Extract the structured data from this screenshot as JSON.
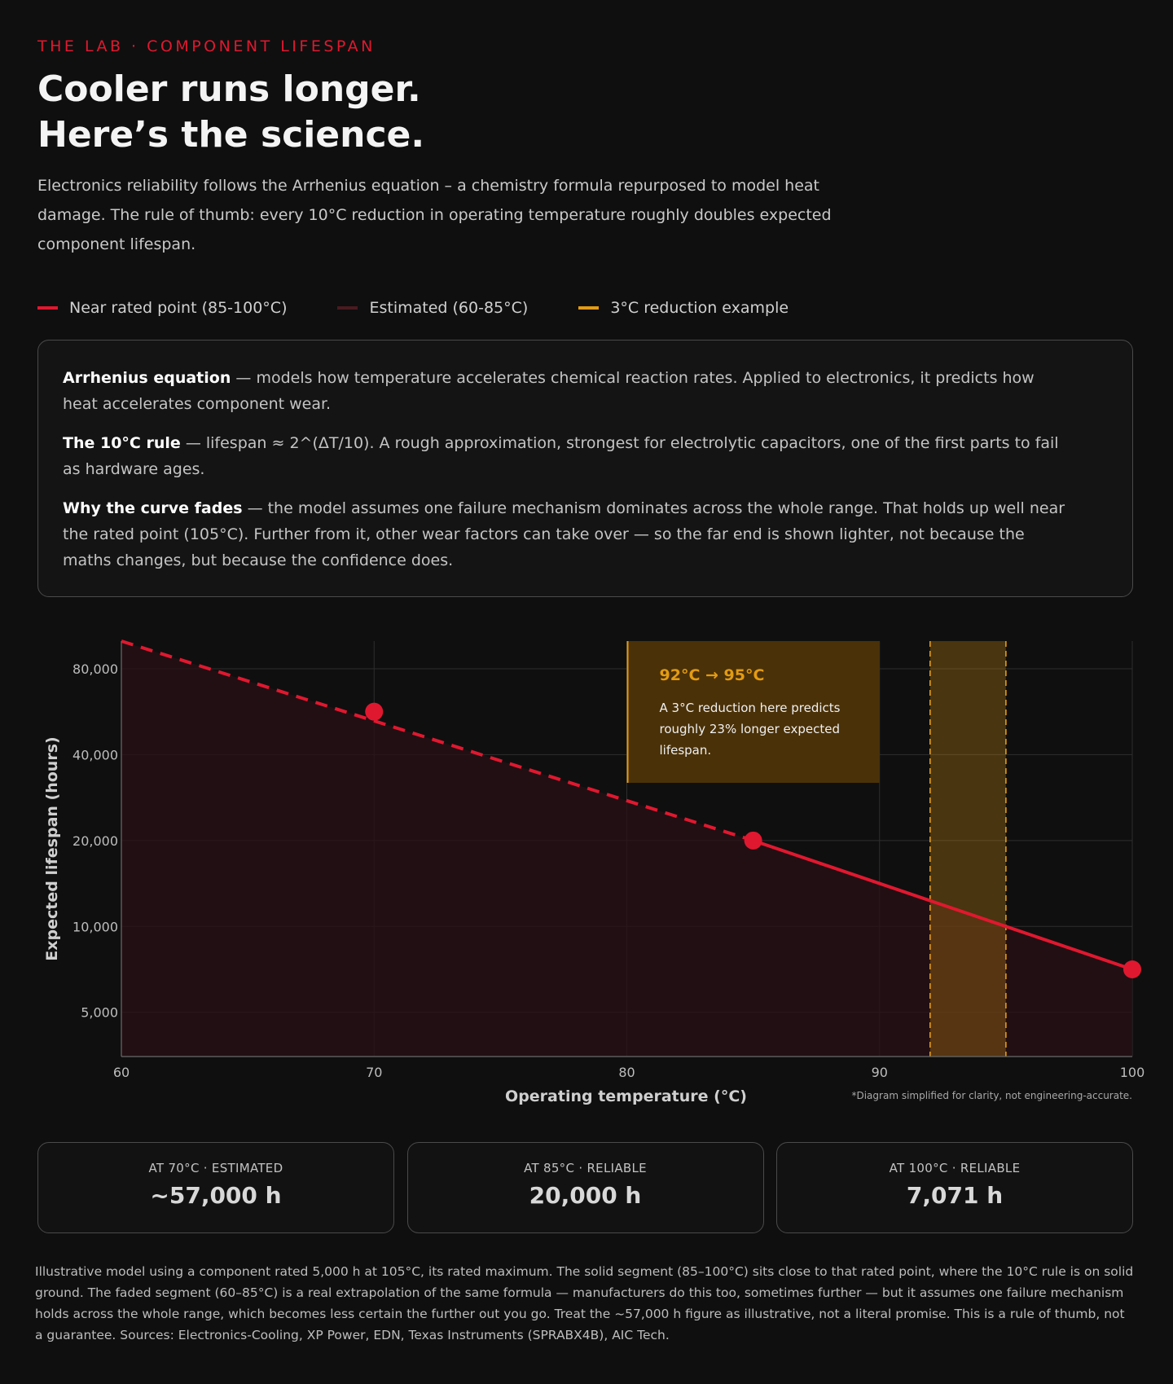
{
  "header": {
    "eyebrow": "THE LAB · COMPONENT LIFESPAN",
    "title_line1": "Cooler runs longer.",
    "title_line2": "Here’s the science.",
    "lede": "Electronics reliability follows the Arrhenius equation – a chemistry formula repurposed to model heat damage. The rule of thumb: every 10°C reduction in operating temperature roughly doubles expected component lifespan."
  },
  "legend": [
    {
      "label": "Near rated point (85-100°C)",
      "color": "#e0182f"
    },
    {
      "label": "Estimated (60-85°C)",
      "color": "#4a1a1f"
    },
    {
      "label": "3°C reduction example",
      "color": "#e39b12"
    }
  ],
  "info": [
    {
      "term": "Arrhenius equation",
      "text": " — models how temperature accelerates chemical reaction rates. Applied to electronics, it predicts how heat accelerates component wear."
    },
    {
      "term": "The 10°C rule",
      "text": " — lifespan ≈ 2^(ΔT/10). A rough approximation, strongest for electrolytic capacitors, one of the first parts to fail as hardware ages."
    },
    {
      "term": "Why the curve fades",
      "text": " — the model assumes one failure mechanism dominates across the whole range. That holds up well near the rated point (105°C). Further from it, other wear factors can take over — so the far end is shown lighter, not because the maths changes, but because the confidence does."
    }
  ],
  "colors": {
    "accent": "#e0182f",
    "estimated_fill": "#2a1015",
    "highlight": "#e39b12"
  },
  "chart_data": {
    "type": "line",
    "xlabel": "Operating temperature (°C)",
    "ylabel": "Expected lifespan (hours)",
    "xlim": [
      60,
      100
    ],
    "ylim": [
      3500,
      100000
    ],
    "y_scale": "log2",
    "x_ticks": [
      60,
      70,
      80,
      90,
      100
    ],
    "y_ticks": [
      5000,
      10000,
      20000,
      40000,
      80000
    ],
    "y_tick_labels": [
      "5,000",
      "10,000",
      "20,000",
      "40,000",
      "80,000"
    ],
    "grid": true,
    "series": [
      {
        "name": "Estimated (60-85°C)",
        "style": "dashed",
        "x": [
          60,
          85
        ],
        "y": [
          113137,
          20000
        ]
      },
      {
        "name": "Near rated point (85-100°C)",
        "style": "solid",
        "x": [
          85,
          100
        ],
        "y": [
          20000,
          7071
        ]
      }
    ],
    "markers": [
      {
        "x": 70,
        "y": 56569
      },
      {
        "x": 85,
        "y": 20000
      },
      {
        "x": 100,
        "y": 7071
      }
    ],
    "highlight_band": {
      "x": [
        92,
        95
      ]
    },
    "annotation": {
      "x_range": [
        80,
        90
      ],
      "title": "92°C → 95°C",
      "text_lines": [
        "A 3°C reduction here predicts",
        "roughly 23% longer expected",
        "lifespan."
      ]
    },
    "footnote": "*Diagram simplified for clarity, not engineering-accurate."
  },
  "cards": [
    {
      "label": "AT 70°C · ESTIMATED",
      "value": "~57,000 h"
    },
    {
      "label": "AT 85°C · RELIABLE",
      "value": "20,000 h"
    },
    {
      "label": "AT 100°C · RELIABLE",
      "value": "7,071 h"
    }
  ],
  "footer": "Illustrative model using a component rated 5,000 h at 105°C, its rated maximum. The solid segment (85–100°C) sits close to that rated point, where the 10°C rule is on solid ground. The faded segment (60–85°C) is a real extrapolation of the same formula — manufacturers do this too, sometimes further — but it assumes one failure mechanism holds across the whole range, which becomes less certain the further out you go. Treat the ~57,000 h figure as illustrative, not a literal promise. This is a rule of thumb, not a guarantee. Sources: Electronics-Cooling, XP Power, EDN, Texas Instruments (SPRABX4B), AIC Tech."
}
